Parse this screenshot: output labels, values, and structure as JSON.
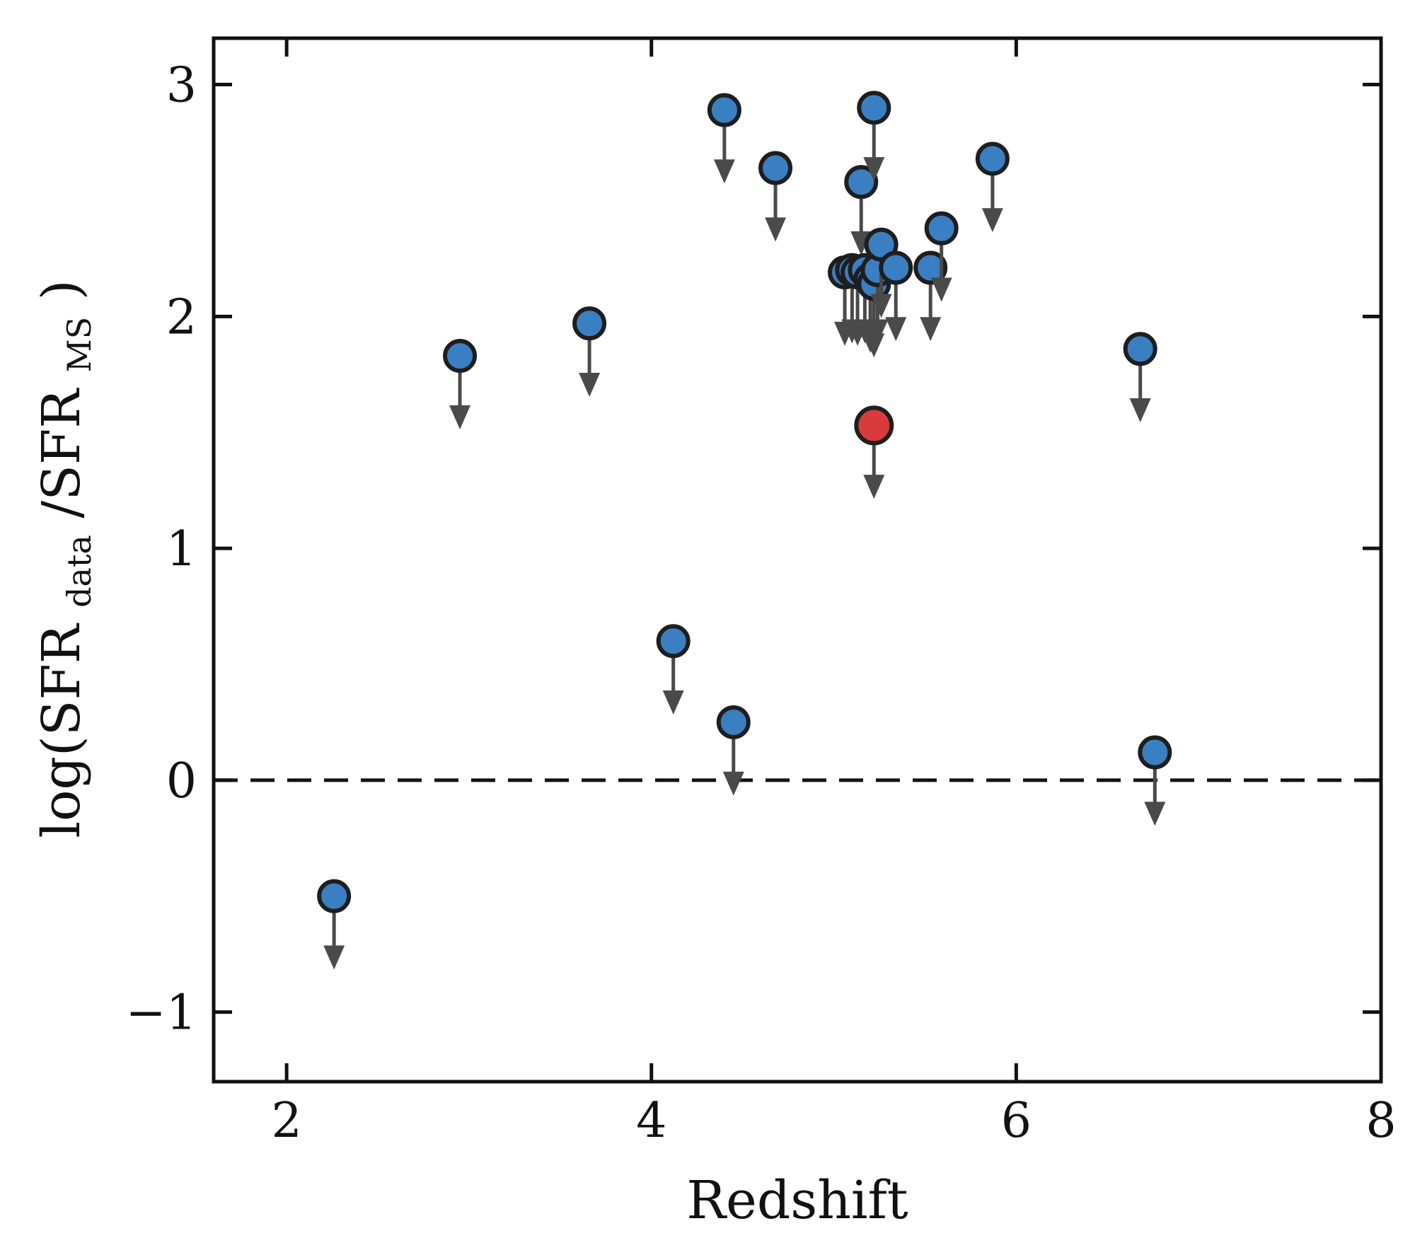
{
  "chart_data": {
    "type": "scatter",
    "title": "",
    "xlabel": "Redshift",
    "ylabel": {
      "prefix": "log(SFR",
      "sub1": "data",
      "middle": "/SFR",
      "sub2": "MS",
      "suffix": ")"
    },
    "xlim": [
      1.6,
      8.0
    ],
    "ylim": [
      -1.3,
      3.2
    ],
    "xticks": [
      2,
      4,
      6,
      8
    ],
    "yticks": [
      -1,
      0,
      1,
      2,
      3
    ],
    "xtick_labels": [
      "2",
      "4",
      "6",
      "8"
    ],
    "ytick_labels": [
      "−1",
      "0",
      "1",
      "2",
      "3"
    ],
    "grid": false,
    "reference_line": {
      "y": 0,
      "style": "dashed",
      "color": "#111111"
    },
    "upper_limit_arrow_length": 0.28,
    "colors": {
      "blue": "#3a7fc1",
      "red": "#d93a3a",
      "edge": "#1e1e1e",
      "arrow": "#4a4a4a"
    },
    "series": [
      {
        "points": [
          {
            "x": 2.26,
            "y": -0.5
          },
          {
            "x": 2.95,
            "y": 1.83
          },
          {
            "x": 3.66,
            "y": 1.97
          },
          {
            "x": 4.12,
            "y": 0.6
          },
          {
            "x": 4.4,
            "y": 2.89
          },
          {
            "x": 4.45,
            "y": 0.25
          },
          {
            "x": 4.68,
            "y": 2.64
          },
          {
            "x": 5.06,
            "y": 2.19
          },
          {
            "x": 5.1,
            "y": 2.2
          },
          {
            "x": 5.13,
            "y": 2.19
          },
          {
            "x": 5.15,
            "y": 2.58
          },
          {
            "x": 5.17,
            "y": 2.2
          },
          {
            "x": 5.2,
            "y": 2.16
          },
          {
            "x": 5.22,
            "y": 2.14
          },
          {
            "x": 5.22,
            "y": 2.9
          },
          {
            "x": 5.24,
            "y": 2.2
          },
          {
            "x": 5.26,
            "y": 2.31
          },
          {
            "x": 5.34,
            "y": 2.21
          },
          {
            "x": 5.53,
            "y": 2.21
          },
          {
            "x": 5.59,
            "y": 2.38
          },
          {
            "x": 5.87,
            "y": 2.68
          },
          {
            "x": 6.68,
            "y": 1.86
          },
          {
            "x": 6.76,
            "y": 0.12
          }
        ],
        "color": "#3a7fc1",
        "marker": "circle",
        "upper_limit": true
      },
      {
        "points": [
          {
            "x": 5.22,
            "y": 1.53
          }
        ],
        "color": "#d93a3a",
        "marker": "circle-large",
        "upper_limit": true
      }
    ]
  }
}
